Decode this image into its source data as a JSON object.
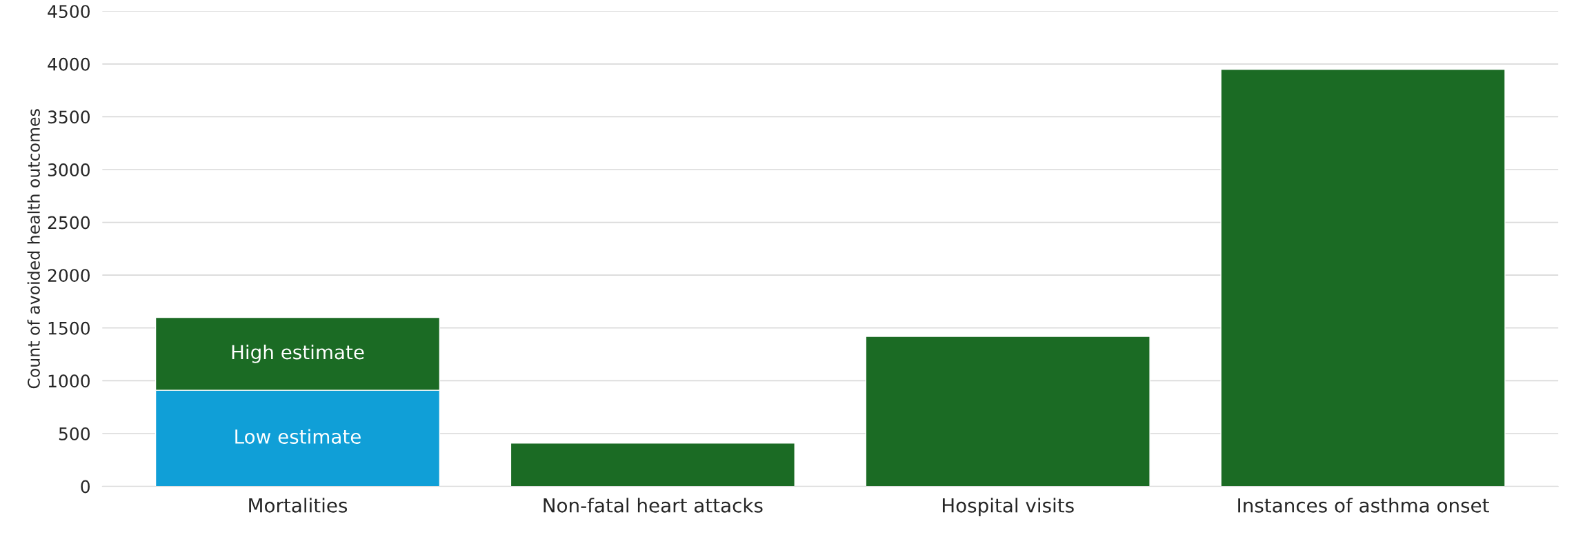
{
  "chart_data": {
    "type": "bar",
    "stacked": true,
    "ylabel": "Count of avoided health outcomes",
    "categories": [
      "Mortalities",
      "Non-fatal heart attacks",
      "Hospital visits",
      "Instances of asthma onset"
    ],
    "series": [
      {
        "name": "Low estimate",
        "color": "#109fd7",
        "values": [
          910,
          null,
          null,
          null
        ]
      },
      {
        "name": "High estimate",
        "color": "#1b6b24",
        "values": [
          690,
          410,
          1420,
          3950
        ]
      }
    ],
    "ylim": [
      0,
      4500
    ],
    "yticks": [
      0,
      500,
      1000,
      1500,
      2000,
      2500,
      3000,
      3500,
      4000,
      4500
    ],
    "grid": "y",
    "legend": false
  }
}
